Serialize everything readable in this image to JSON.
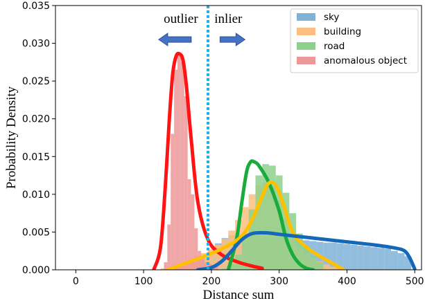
{
  "chart_data": {
    "type": "histogram",
    "title": "",
    "xlabel": "Distance sum",
    "ylabel": "Probability Density",
    "xlim": [
      -30,
      510
    ],
    "ylim": [
      0,
      0.035
    ],
    "xticks": [
      0,
      100,
      200,
      300,
      400,
      500
    ],
    "yticks": [
      0.0,
      0.005,
      0.01,
      0.015,
      0.02,
      0.025,
      0.03,
      0.035
    ],
    "ytick_labels": [
      "0.000",
      "0.005",
      "0.010",
      "0.015",
      "0.020",
      "0.025",
      "0.030",
      "0.035"
    ],
    "grid": false,
    "legend_position": "top-right",
    "threshold": {
      "x": 195,
      "color": "#1fb1ea",
      "style": "dotted"
    },
    "annotations": [
      {
        "text": "outlier",
        "x": 155,
        "y": 0.0327,
        "arrow": "left"
      },
      {
        "text": "inlier",
        "x": 225,
        "y": 0.0327,
        "arrow": "right"
      }
    ],
    "series": [
      {
        "name": "sky",
        "hist_color": "#7fb2d6",
        "curve_color": "#1568b8",
        "bins": {
          "start": 165,
          "width": 10,
          "values": [
            0.0003,
            0.0008,
            0.0015,
            0.0025,
            0.0035,
            0.0042,
            0.0046,
            0.0048,
            0.0047,
            0.0046,
            0.0045,
            0.0044,
            0.0043,
            0.0042,
            0.0041,
            0.004,
            0.004,
            0.0039,
            0.0038,
            0.0037,
            0.0036,
            0.0036,
            0.0035,
            0.0034,
            0.0033,
            0.0032,
            0.0031,
            0.003,
            0.0029,
            0.0028,
            0.0025,
            0.0022,
            0.0018
          ]
        },
        "curve": {
          "x": [
            180,
            200,
            215,
            230,
            245,
            260,
            280,
            300,
            330,
            360,
            400,
            440,
            470,
            485,
            493,
            500
          ],
          "y": [
            0.0,
            0.0003,
            0.0011,
            0.0025,
            0.004,
            0.0048,
            0.0049,
            0.0047,
            0.0044,
            0.0041,
            0.0037,
            0.0033,
            0.0029,
            0.0025,
            0.0015,
            0.0001
          ]
        }
      },
      {
        "name": "building",
        "hist_color": "#fdbf7f",
        "curve_color": "#ffc000",
        "bins": {
          "start": 125,
          "width": 10,
          "values": [
            0.0002,
            0.0004,
            0.0007,
            0.001,
            0.0014,
            0.0018,
            0.0022,
            0.0027,
            0.0033,
            0.0041,
            0.0052,
            0.0066,
            0.0083,
            0.01,
            0.0112,
            0.0116,
            0.011,
            0.0092,
            0.0068,
            0.0045,
            0.003,
            0.0022,
            0.0016,
            0.0011,
            0.0007,
            0.0004,
            0.0002
          ]
        },
        "curve": {
          "x": [
            135,
            160,
            190,
            220,
            245,
            262,
            275,
            285,
            295,
            305,
            320,
            340,
            360,
            380,
            395
          ],
          "y": [
            0.0,
            0.0008,
            0.0018,
            0.003,
            0.0045,
            0.007,
            0.0098,
            0.0115,
            0.0112,
            0.009,
            0.005,
            0.003,
            0.0018,
            0.0008,
            0.0
          ]
        }
      },
      {
        "name": "road",
        "hist_color": "#8dd18d",
        "curve_color": "#1aab3c",
        "bins": {
          "start": 215,
          "width": 10,
          "values": [
            0.0002,
            0.0008,
            0.002,
            0.0045,
            0.008,
            0.0125,
            0.014,
            0.0138,
            0.0125,
            0.0102,
            0.0075,
            0.0048,
            0.003,
            0.0018,
            0.001
          ]
        },
        "curve": {
          "x": [
            225,
            237,
            245,
            252,
            258,
            263,
            270,
            285,
            300,
            310,
            320,
            330,
            340,
            350
          ],
          "y": [
            0.0,
            0.004,
            0.009,
            0.013,
            0.0143,
            0.0143,
            0.0138,
            0.0115,
            0.0078,
            0.0042,
            0.002,
            0.0008,
            0.0002,
            0.0
          ]
        }
      },
      {
        "name": "anomalous object",
        "hist_color": "#ec9898",
        "curve_color": "#ff1414",
        "bins": {
          "start": 130,
          "width": 5,
          "values": [
            0.001,
            0.006,
            0.018,
            0.0265,
            0.0285,
            0.0275,
            0.023,
            0.012,
            0.01,
            0.0055,
            0.0025,
            0.0015,
            0.001,
            0.0008,
            0.0006,
            0.0005
          ]
        },
        "curve": {
          "x": [
            115,
            125,
            132,
            138,
            143,
            148,
            153,
            158,
            163,
            170,
            180,
            195,
            215,
            240,
            260,
            275
          ],
          "y": [
            0.0,
            0.003,
            0.011,
            0.02,
            0.026,
            0.0283,
            0.0286,
            0.0278,
            0.0245,
            0.0175,
            0.009,
            0.004,
            0.002,
            0.001,
            0.0005,
            0.0002
          ]
        }
      }
    ],
    "colors": {
      "arrow_fill": "#4472c4",
      "arrow_stroke": "#2f528f",
      "legend_border": "#cccccc"
    }
  }
}
